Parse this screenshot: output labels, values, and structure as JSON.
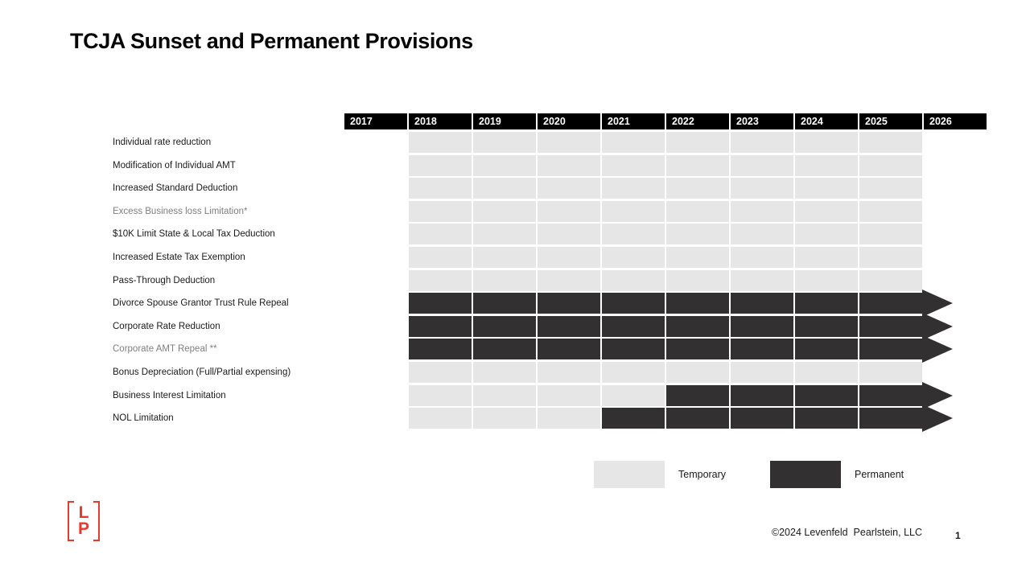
{
  "slide": {
    "title": "TCJA Sunset and Permanent Provisions",
    "copyright": "©2024 Levenfeld  Pearlstein, LLC",
    "page_number": "1",
    "logo_letters": [
      "L",
      "P"
    ]
  },
  "legend": {
    "items": [
      {
        "label": "Temporary",
        "key": "temporary"
      },
      {
        "label": "Permanent",
        "key": "permanent"
      }
    ]
  },
  "colors": {
    "temporary": "#e7e6e6",
    "permanent": "#323031",
    "header_bg": "#000000",
    "header_text": "#ffffff",
    "muted_label": "#7f7f7f",
    "logo_red": "#e8392f"
  },
  "chart_data": {
    "type": "timeline-gantt",
    "title": "TCJA Sunset and Permanent Provisions",
    "years": [
      "2017",
      "2018",
      "2019",
      "2020",
      "2021",
      "2022",
      "2023",
      "2024",
      "2025",
      "2026"
    ],
    "bar_year_range": [
      "2018",
      "2025"
    ],
    "legend": {
      "temporary": "Temporary",
      "permanent": "Permanent"
    },
    "rows": [
      {
        "label": "Individual rate reduction",
        "muted": false,
        "arrow": false,
        "segments": [
          {
            "from": 2018,
            "to": 2025,
            "status": "temporary"
          }
        ]
      },
      {
        "label": "Modification of Individual AMT",
        "muted": false,
        "arrow": false,
        "segments": [
          {
            "from": 2018,
            "to": 2025,
            "status": "temporary"
          }
        ]
      },
      {
        "label": "Increased Standard Deduction",
        "muted": false,
        "arrow": false,
        "segments": [
          {
            "from": 2018,
            "to": 2025,
            "status": "temporary"
          }
        ]
      },
      {
        "label": "Excess Business loss Limitation*",
        "muted": true,
        "arrow": false,
        "segments": [
          {
            "from": 2018,
            "to": 2025,
            "status": "temporary"
          }
        ]
      },
      {
        "label": "$10K Limit State & Local Tax Deduction",
        "muted": false,
        "arrow": false,
        "segments": [
          {
            "from": 2018,
            "to": 2025,
            "status": "temporary"
          }
        ]
      },
      {
        "label": "Increased Estate Tax Exemption",
        "muted": false,
        "arrow": false,
        "segments": [
          {
            "from": 2018,
            "to": 2025,
            "status": "temporary"
          }
        ]
      },
      {
        "label": "Pass-Through Deduction",
        "muted": false,
        "arrow": false,
        "segments": [
          {
            "from": 2018,
            "to": 2025,
            "status": "temporary"
          }
        ]
      },
      {
        "label": "Divorce Spouse Grantor Trust Rule Repeal",
        "muted": false,
        "arrow": true,
        "segments": [
          {
            "from": 2018,
            "to": 2025,
            "status": "permanent"
          }
        ]
      },
      {
        "label": "Corporate Rate Reduction",
        "muted": false,
        "arrow": true,
        "segments": [
          {
            "from": 2018,
            "to": 2025,
            "status": "permanent"
          }
        ]
      },
      {
        "label": "Corporate AMT  Repeal **",
        "muted": true,
        "arrow": true,
        "segments": [
          {
            "from": 2018,
            "to": 2025,
            "status": "permanent"
          }
        ]
      },
      {
        "label": "Bonus Depreciation (Full/Partial expensing)",
        "muted": false,
        "arrow": false,
        "segments": [
          {
            "from": 2018,
            "to": 2025,
            "status": "temporary"
          }
        ]
      },
      {
        "label": "Business Interest Limitation",
        "muted": false,
        "arrow": true,
        "segments": [
          {
            "from": 2018,
            "to": 2021,
            "status": "temporary"
          },
          {
            "from": 2022,
            "to": 2025,
            "status": "permanent"
          }
        ]
      },
      {
        "label": "NOL Limitation",
        "muted": false,
        "arrow": true,
        "segments": [
          {
            "from": 2018,
            "to": 2020,
            "status": "temporary"
          },
          {
            "from": 2021,
            "to": 2025,
            "status": "permanent"
          }
        ]
      }
    ]
  }
}
